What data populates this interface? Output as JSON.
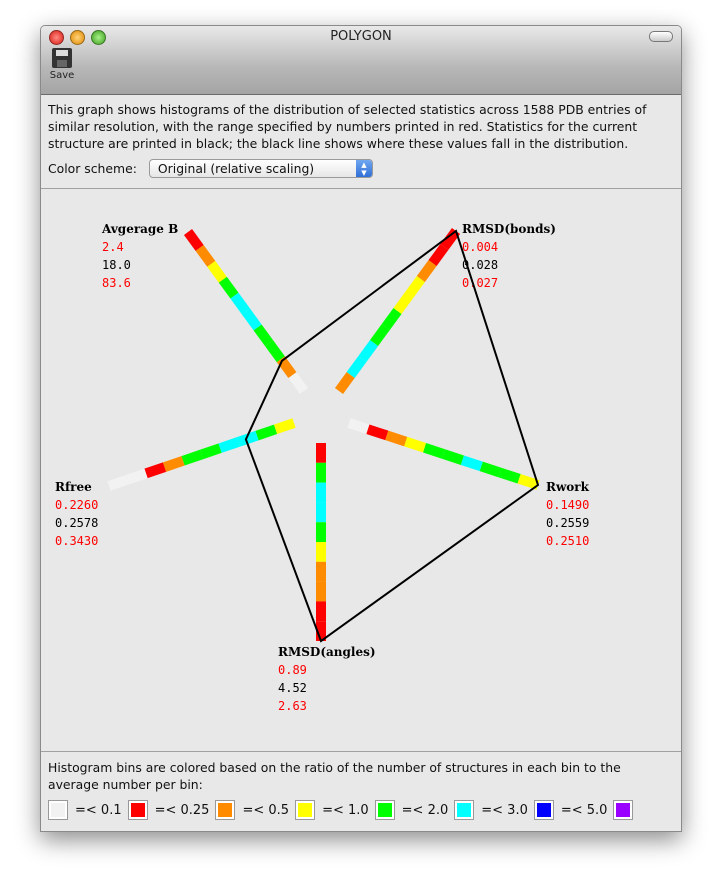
{
  "window": {
    "title": "POLYGON",
    "toolbar": {
      "save_label": "Save"
    }
  },
  "description": "This graph shows histograms of the distribution of selected statistics across 1588 PDB entries of similar resolution, with the range specified by numbers printed in red.  Statistics for the current structure are printed in black; the black line shows where these values fall in the distribution.",
  "color_scheme": {
    "label": "Color scheme:",
    "selected": "Original (relative scaling)"
  },
  "colors": {
    "white": "#f2f2f2",
    "red": "#ff0000",
    "orange": "#ff8c00",
    "yellow": "#ffff00",
    "green": "#00ff00",
    "cyan": "#00ffff",
    "blue": "#0000ff",
    "purple": "#9900ff",
    "range": "#ff0000",
    "current": "#000000"
  },
  "chart_data": {
    "type": "radar-histogram",
    "axes": [
      {
        "name": "Avgerage B",
        "min": "2.4",
        "current": "18.0",
        "max": "83.6",
        "bins": [
          "white",
          "orange",
          "green",
          "green",
          "cyan",
          "cyan",
          "green",
          "yellow",
          "orange",
          "red"
        ],
        "polygon_fraction": 0.19
      },
      {
        "name": "RMSD(bonds)",
        "min": "0.004",
        "current": "0.028",
        "max": "0.027",
        "bins": [
          "orange",
          "cyan",
          "cyan",
          "green",
          "green",
          "yellow",
          "yellow",
          "orange",
          "red",
          "red"
        ],
        "polygon_fraction": 1.0
      },
      {
        "name": "Rwork",
        "min": "0.1490",
        "current": "0.2559",
        "max": "0.2510",
        "bins": [
          "white",
          "red",
          "orange",
          "yellow",
          "green",
          "green",
          "cyan",
          "green",
          "green",
          "yellow"
        ],
        "polygon_fraction": 1.0
      },
      {
        "name": "RMSD(angles)",
        "min": "0.89",
        "current": "4.52",
        "max": "2.63",
        "bins": [
          "red",
          "green",
          "cyan",
          "cyan",
          "green",
          "yellow",
          "orange",
          "orange",
          "red",
          "red"
        ],
        "polygon_fraction": 1.0
      },
      {
        "name": "Rfree",
        "min": "0.2260",
        "current": "0.2578",
        "max": "0.3430",
        "bins": [
          "yellow",
          "green",
          "cyan",
          "cyan",
          "green",
          "green",
          "orange",
          "red",
          "white",
          "white"
        ],
        "polygon_fraction": 0.26
      }
    ]
  },
  "legend": {
    "text": "Histogram bins are colored based on the ratio of the number of structures in each bin to the average number per bin:",
    "items": [
      {
        "color": "white",
        "label": "=< 0.1"
      },
      {
        "color": "red",
        "label": "=< 0.25"
      },
      {
        "color": "orange",
        "label": "=< 0.5"
      },
      {
        "color": "yellow",
        "label": "=< 1.0"
      },
      {
        "color": "green",
        "label": "=< 2.0"
      },
      {
        "color": "cyan",
        "label": "=< 3.0"
      },
      {
        "color": "blue",
        "label": "=< 5.0"
      },
      {
        "color": "purple",
        "label": ""
      }
    ]
  }
}
